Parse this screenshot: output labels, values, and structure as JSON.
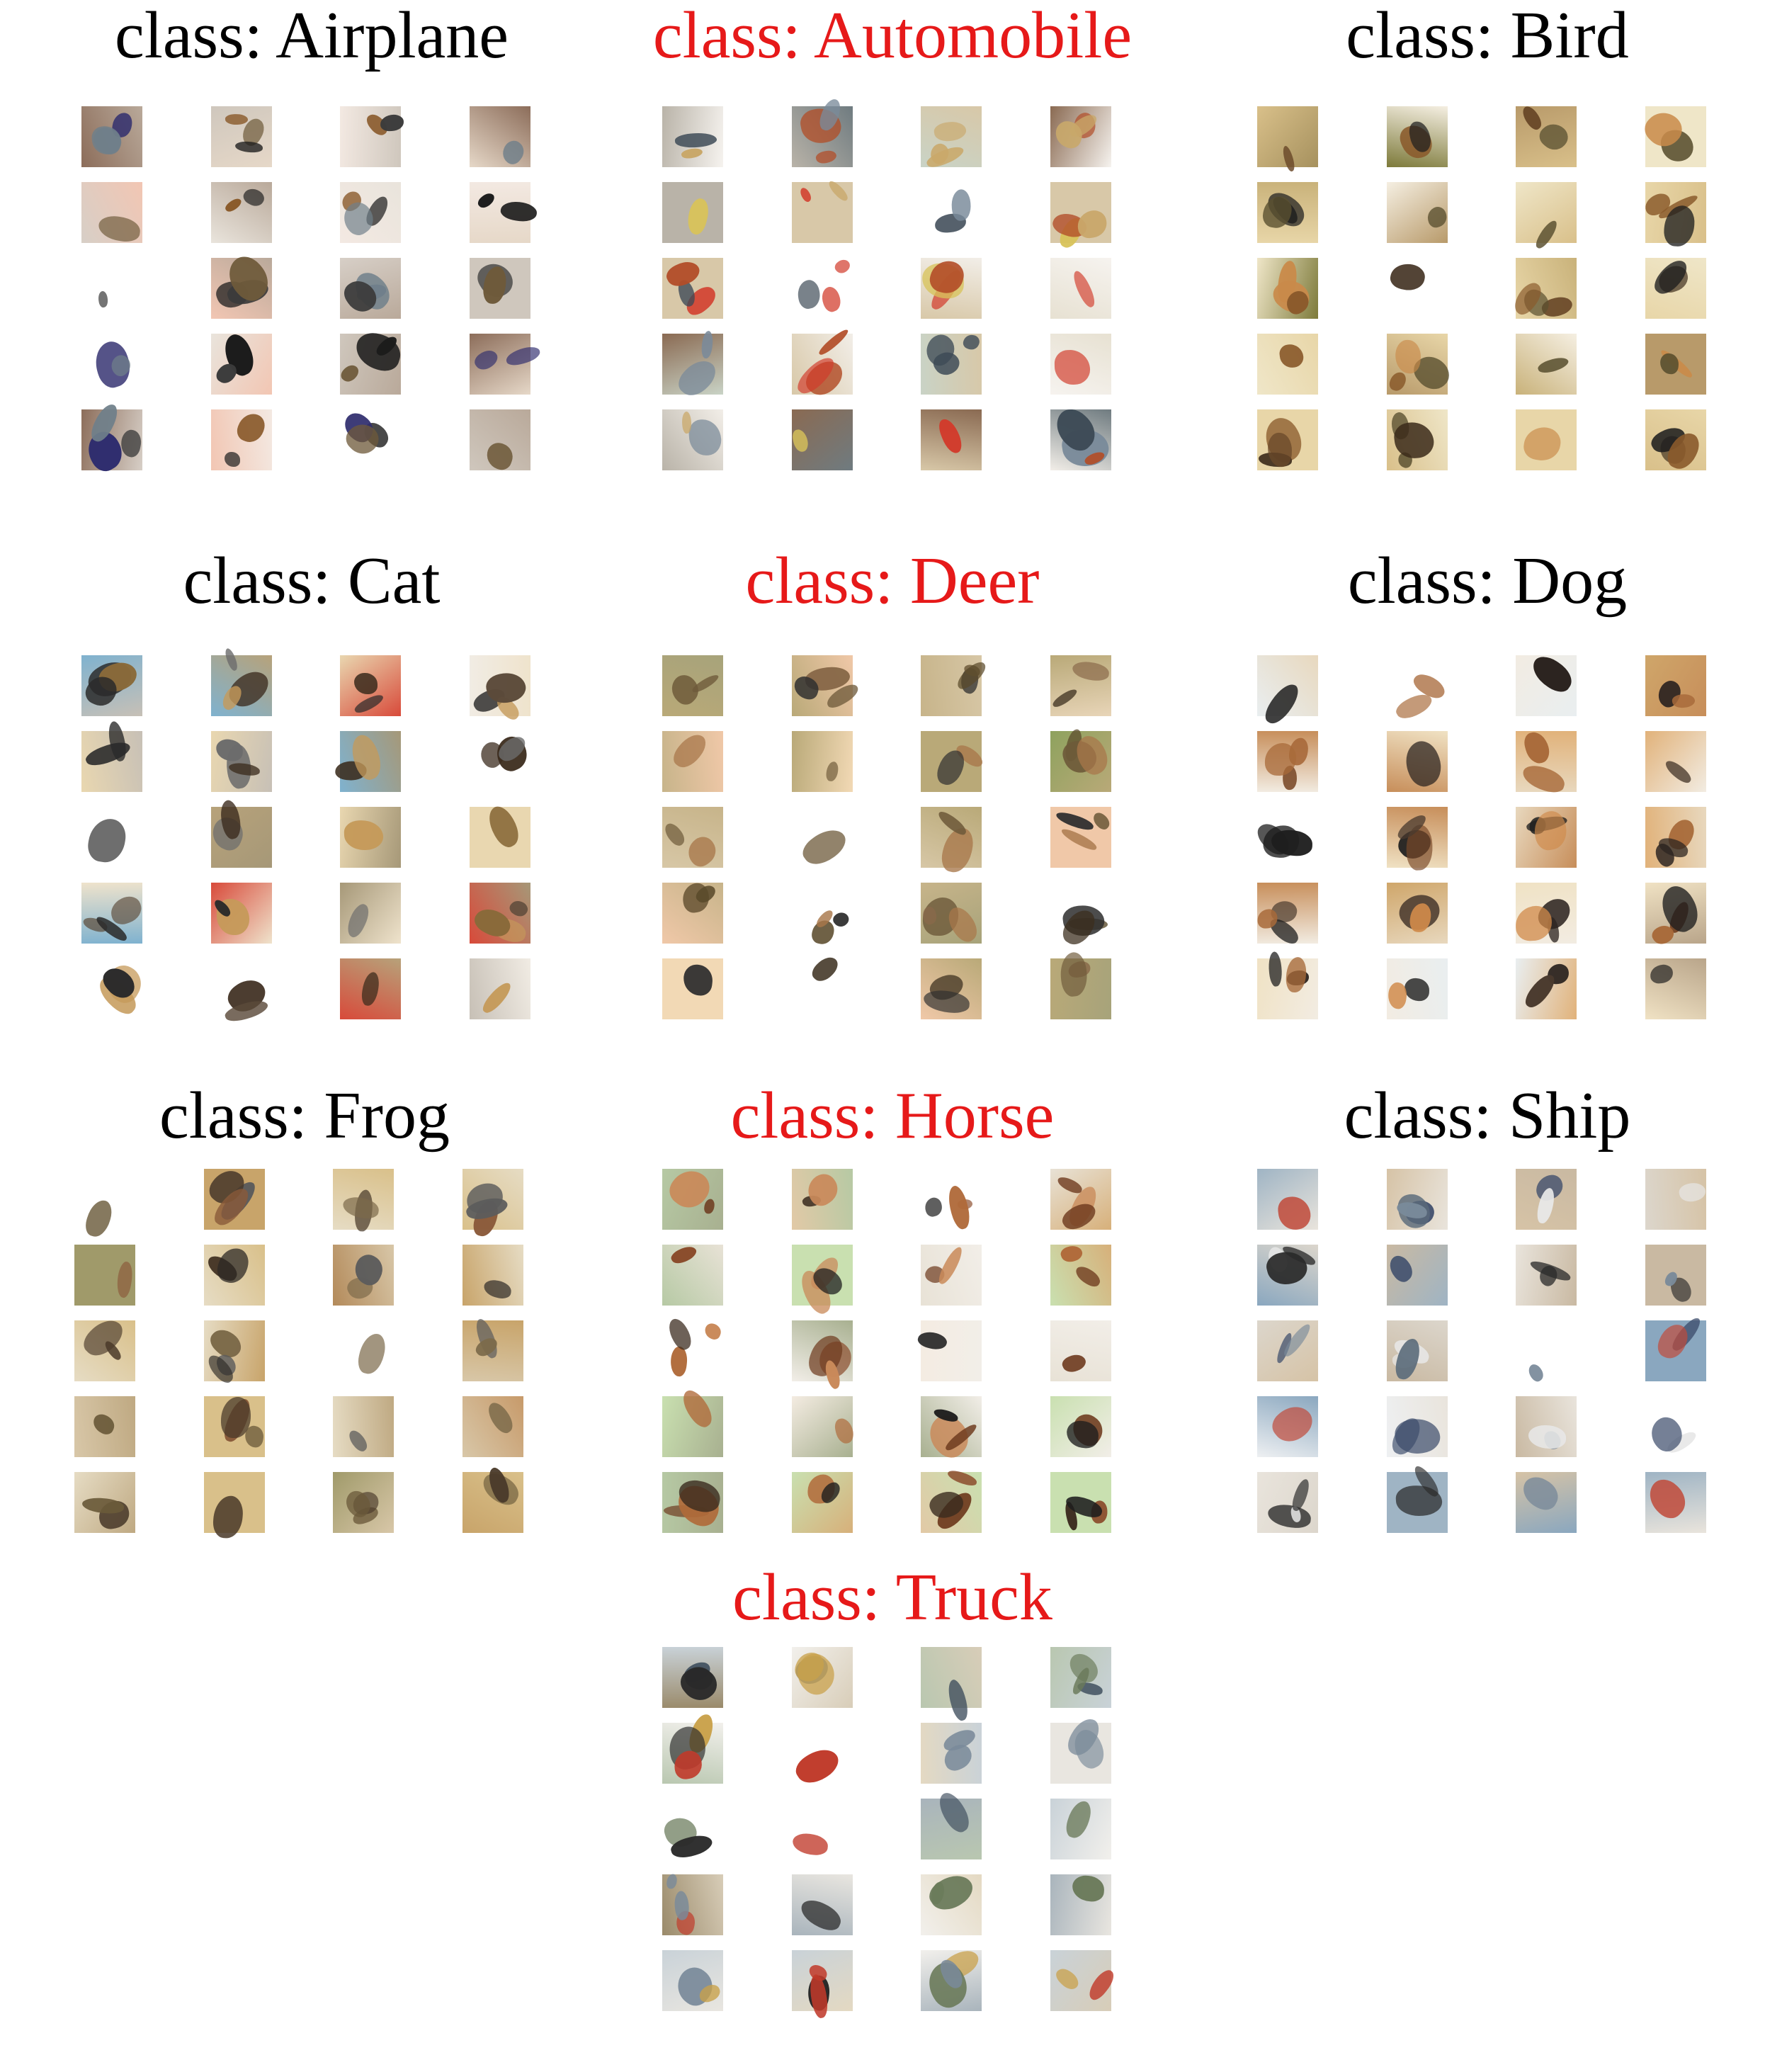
{
  "figure": {
    "panels": [
      {
        "key": "airplane",
        "title": "class: Airplane",
        "title_color": "#000000",
        "palette": {
          "bg": [
            "#f3e9e2",
            "#e9e4dc",
            "#cfc7bd",
            "#f2c6b3",
            "#b9a99a",
            "#e6d8c8",
            "#d7cfc7",
            "#8c6d5a"
          ],
          "fg": [
            "#2f2d6e",
            "#1c1c1c",
            "#6e5a3a",
            "#8a5a2b",
            "#3b3b3b",
            "#6f7f8a"
          ]
        }
      },
      {
        "key": "automobile",
        "title": "class: Automobile",
        "title_color": "#e61919",
        "palette": {
          "bg": [
            "#e7e1d2",
            "#c9d3c6",
            "#f2eee8",
            "#6f7b80",
            "#d8c8a8",
            "#b9b3a8",
            "#f6f3ef",
            "#8a6a52"
          ],
          "fg": [
            "#d8c35a",
            "#d23b2b",
            "#7a8a9a",
            "#3d4a56",
            "#c9a86a",
            "#b24d28"
          ]
        }
      },
      {
        "key": "bird",
        "title": "class: Bird",
        "title_color": "#000000",
        "palette": {
          "bg": [
            "#e8d6a8",
            "#b89a6a",
            "#f5efe2",
            "#c9b27a",
            "#d9c08a",
            "#a6915e",
            "#efe6c8",
            "#7d7a3a"
          ],
          "fg": [
            "#3b2a1a",
            "#6b4a2a",
            "#1e1e1e",
            "#8a5a2b",
            "#5a5030",
            "#c98a4a"
          ]
        }
      },
      {
        "key": "cat",
        "title": "class: Cat",
        "title_color": "#000000",
        "palette": {
          "bg": [
            "#e9d7b0",
            "#f1ece4",
            "#a69878",
            "#c7c0b6",
            "#d84a3a",
            "#7fb2cf",
            "#efe3cc",
            "#b7a27a"
          ],
          "fg": [
            "#3a2a1c",
            "#5c4a3a",
            "#8a6a3a",
            "#c59a5a",
            "#2a2a2a",
            "#6c6c6c"
          ]
        }
      },
      {
        "key": "deer",
        "title": "class: Deer",
        "title_color": "#e61919",
        "palette": {
          "bg": [
            "#c7b48a",
            "#a7a37a",
            "#e8d5b8",
            "#f0c8a8",
            "#8ea25e",
            "#f2d9b5",
            "#b9a978",
            "#d7c7a6"
          ],
          "fg": [
            "#3b2e1e",
            "#6e5a3a",
            "#2f2f2f",
            "#8a6a4a",
            "#5a4a2a",
            "#a8774a"
          ]
        }
      },
      {
        "key": "dog",
        "title": "class: Dog",
        "title_color": "#000000",
        "palette": {
          "bg": [
            "#f0e2c4",
            "#e1b27a",
            "#cfa66a",
            "#f2ece2",
            "#c78e5a",
            "#b9a58a",
            "#e8d8be",
            "#e9eef0"
          ],
          "fg": [
            "#2c2420",
            "#7a4a2a",
            "#d08a4a",
            "#4a3a2e",
            "#a86a3a",
            "#1e1e1e"
          ]
        }
      },
      {
        "key": "frog",
        "title": "class: Frog",
        "title_color": "#000000",
        "palette": {
          "bg": [
            "#c8a46a",
            "#b38a5a",
            "#d9c08a",
            "#a09a6a",
            "#e6dcc4",
            "#c79a6a",
            "#bfa982",
            "#d8c7a8"
          ],
          "fg": [
            "#4a3a2a",
            "#6a5a3a",
            "#2e2a26",
            "#8a5a3a",
            "#5c5c5c",
            "#7c6a4a"
          ]
        }
      },
      {
        "key": "horse",
        "title": "class: Horse",
        "title_color": "#e61919",
        "palette": {
          "bg": [
            "#f4ece2",
            "#c9e0b0",
            "#e8e2d6",
            "#d7b07a",
            "#b6c9a4",
            "#f2eee8",
            "#e2c9a6",
            "#a8b090"
          ],
          "fg": [
            "#6e3a1e",
            "#3a2a1e",
            "#b06a3a",
            "#1e1e1e",
            "#8a4a2a",
            "#c98a5a"
          ]
        }
      },
      {
        "key": "ship",
        "title": "class: Ship",
        "title_color": "#000000",
        "palette": {
          "bg": [
            "#dcd6cc",
            "#b7c9d6",
            "#e9e4dc",
            "#8aa7bf",
            "#d6c3a6",
            "#eef0f2",
            "#c9b9a2",
            "#9fb4c4"
          ],
          "fg": [
            "#3a4a6a",
            "#2a2a2a",
            "#7a8a9a",
            "#c04a3a",
            "#5a6a7a",
            "#e8e8e8"
          ]
        }
      },
      {
        "key": "truck",
        "title": "class: Truck",
        "title_color": "#e61919",
        "palette": {
          "bg": [
            "#e9e6e0",
            "#c9d2d8",
            "#d8cdb8",
            "#b9c7b0",
            "#f2f0ec",
            "#a9b4bc",
            "#e4d9c2",
            "#9a8a6a"
          ],
          "fg": [
            "#c03a2a",
            "#3a4a5a",
            "#6a7a5a",
            "#2a2a2a",
            "#c9a14a",
            "#7a8a9a"
          ]
        }
      }
    ]
  }
}
